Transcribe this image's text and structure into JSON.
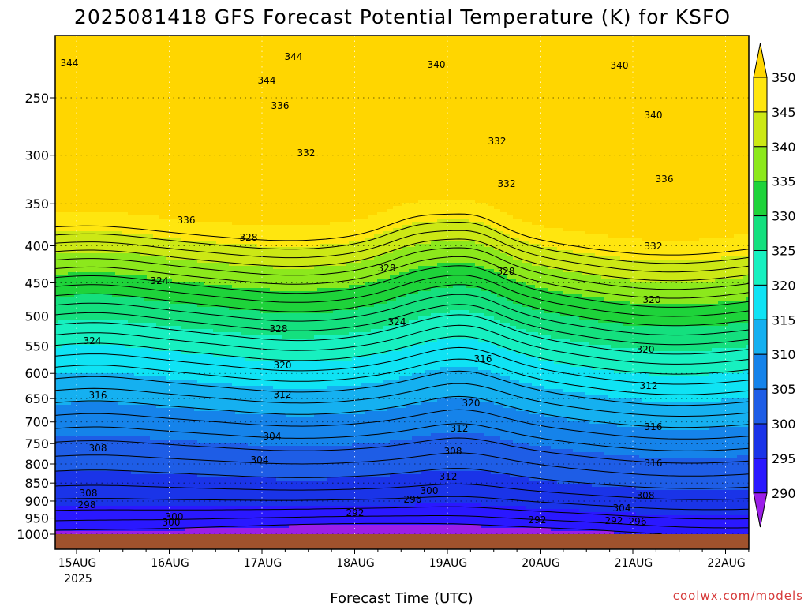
{
  "chart_data": {
    "type": "heatmap",
    "title": "2025081418 GFS Forecast Potential Temperature (K) for KSFO",
    "xlabel": "Forecast Time (UTC)",
    "ylabel": "",
    "credit": "coolwx.com/models",
    "x_tick_labels": [
      "15AUG",
      "16AUG",
      "17AUG",
      "18AUG",
      "19AUG",
      "20AUG",
      "21AUG",
      "22AUG"
    ],
    "x_year_label": "2025",
    "y_scale": "log-pressure (hPa), inverted",
    "y_ticks": [
      250,
      300,
      350,
      400,
      450,
      500,
      550,
      600,
      650,
      700,
      750,
      800,
      850,
      900,
      950,
      1000
    ],
    "ylim": [
      200,
      1010
    ],
    "colorbar": {
      "levels": [
        290,
        295,
        300,
        305,
        310,
        315,
        320,
        325,
        330,
        335,
        340,
        345,
        350
      ],
      "colors": [
        "#9b1fe8",
        "#2a18ff",
        "#1a34e8",
        "#1e5de6",
        "#1583ea",
        "#15b0f0",
        "#0fe3f4",
        "#17f0c0",
        "#14e07e",
        "#1ed33a",
        "#8ce81c",
        "#cce815",
        "#ffe60f",
        "#ffd600"
      ],
      "extend": "both"
    },
    "grid": true,
    "contour_interval_K": 2,
    "labeled_contours": [
      292,
      296,
      298,
      300,
      304,
      308,
      312,
      316,
      320,
      324,
      328,
      332,
      336,
      340,
      344
    ],
    "contour_label_text": [
      "344",
      "344",
      "340",
      "340",
      "344",
      "340",
      "336",
      "332",
      "332",
      "336",
      "332",
      "336",
      "328",
      "332",
      "324",
      "328",
      "328",
      "324",
      "320",
      "324",
      "320",
      "328",
      "316",
      "320",
      "316",
      "312",
      "320",
      "312",
      "316",
      "308",
      "312",
      "304",
      "308",
      "316",
      "304",
      "312",
      "308",
      "300",
      "296",
      "304",
      "308",
      "296",
      "300",
      "292",
      "292",
      "292",
      "300",
      "298"
    ],
    "profile_samples": [
      {
        "time": "2025-08-14 18Z",
        "levels_hPa": [
          1000,
          950,
          900,
          850,
          800,
          700,
          600,
          500,
          400,
          300,
          250
        ],
        "theta_K": [
          293,
          298,
          305,
          308,
          311,
          315,
          318,
          322,
          328,
          335,
          342
        ]
      },
      {
        "time": "2025-08-17 00Z",
        "levels_hPa": [
          1000,
          950,
          900,
          850,
          800,
          700,
          600,
          500,
          400,
          300,
          250
        ],
        "theta_K": [
          291,
          293,
          297,
          302,
          306,
          313,
          318,
          322,
          328,
          334,
          337
        ]
      },
      {
        "time": "2025-08-19 00Z",
        "levels_hPa": [
          1000,
          950,
          900,
          850,
          800,
          700,
          600,
          500,
          400,
          300,
          250
        ],
        "theta_K": [
          292,
          295,
          299,
          303,
          307,
          313,
          320,
          325,
          331,
          336,
          339
        ]
      },
      {
        "time": "2025-08-21 12Z",
        "levels_hPa": [
          1000,
          950,
          900,
          850,
          800,
          700,
          600,
          500,
          400,
          300,
          250
        ],
        "theta_K": [
          294,
          298,
          304,
          309,
          313,
          318,
          323,
          328,
          334,
          338,
          343
        ]
      }
    ],
    "ground_color": "#a0522d"
  }
}
